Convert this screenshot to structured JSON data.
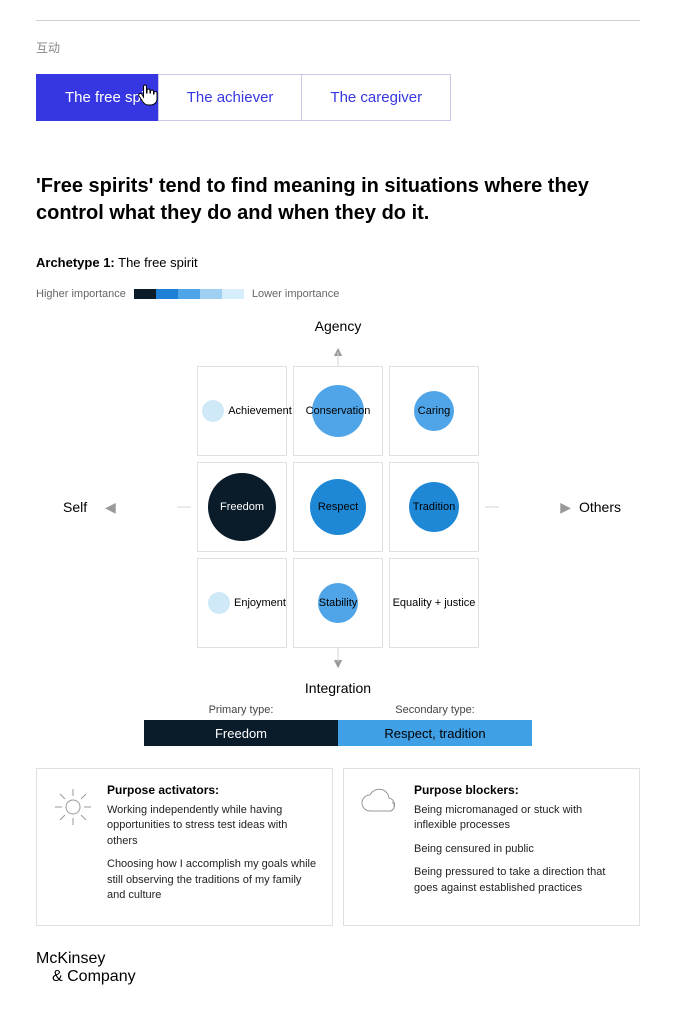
{
  "top_label": "互动",
  "tabs": [
    {
      "label": "The free spirit",
      "active": true
    },
    {
      "label": "The achiever",
      "active": false
    },
    {
      "label": "The caregiver",
      "active": false
    }
  ],
  "headline": "'Free spirits' tend to find meaning in situations where they control what they do and when they do it.",
  "archetype_prefix": "Archetype 1:",
  "archetype_name": " The free spirit",
  "legend": {
    "high": "Higher importance",
    "low": "Lower importance",
    "colors": [
      "#0a1b2a",
      "#1e7fd6",
      "#4fa5e8",
      "#9fd0f2",
      "#d6edfb"
    ]
  },
  "axes": {
    "top": "Agency",
    "bottom": "Integration",
    "left": "Self",
    "right": "Others"
  },
  "grid_cells": [
    {
      "label": "Achievement",
      "bubble_diameter": 22,
      "bubble_color": "#cfe9f8",
      "text_inside": false
    },
    {
      "label": "Conservation",
      "bubble_diameter": 52,
      "bubble_color": "#4fa5e8",
      "text_inside": true,
      "text_color": "#000"
    },
    {
      "label": "Caring",
      "bubble_diameter": 40,
      "bubble_color": "#4fa5e8",
      "text_inside": true,
      "text_color": "#000"
    },
    {
      "label": "Freedom",
      "bubble_diameter": 68,
      "bubble_color": "#0a1b2a",
      "text_inside": true,
      "text_color": "#fff"
    },
    {
      "label": "Respect",
      "bubble_diameter": 56,
      "bubble_color": "#1e88d6",
      "text_inside": true,
      "text_color": "#000"
    },
    {
      "label": "Tradition",
      "bubble_diameter": 50,
      "bubble_color": "#1e88d6",
      "text_inside": true,
      "text_color": "#000"
    },
    {
      "label": "Enjoyment",
      "bubble_diameter": 22,
      "bubble_color": "#cfe9f8",
      "text_inside": false
    },
    {
      "label": "Stability",
      "bubble_diameter": 40,
      "bubble_color": "#4fa5e8",
      "text_inside": true,
      "text_color": "#000"
    },
    {
      "label": "Equality + justice",
      "bubble_diameter": 0,
      "bubble_color": "#ffffff",
      "text_inside": false
    }
  ],
  "type_bar": {
    "primary_header": "Primary type:",
    "secondary_header": "Secondary type:",
    "primary_label": "Freedom",
    "secondary_label": "Respect, tradition",
    "primary_bg": "#0a1b2a",
    "primary_fg": "#ffffff",
    "secondary_bg": "#3fa0e6",
    "secondary_fg": "#000000"
  },
  "activators": {
    "title": "Purpose activators:",
    "items": [
      "Working independently while having opportunities to stress test ideas with others",
      "Choosing how I accomplish my goals while still observing the traditions of my family and culture"
    ]
  },
  "blockers": {
    "title": "Purpose blockers:",
    "items": [
      "Being micromanaged or stuck with inflexible processes",
      "Being censured in public",
      "Being pressured to take a direction that goes against established practices"
    ]
  },
  "brand_line1": "McKinsey",
  "brand_line2": "& Company"
}
